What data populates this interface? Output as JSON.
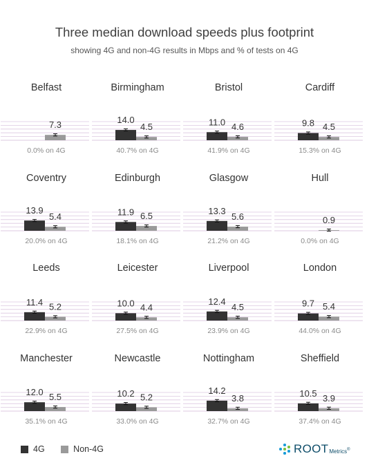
{
  "title": "Three median download speeds plus footprint",
  "subtitle": "showing 4G and non-4G results in Mbps and % of tests on 4G",
  "colors": {
    "4g": "#333333",
    "non4g": "#9a9a9a",
    "grid": "#dcc8e0",
    "error_bar": "#111111",
    "logo": "#0f4e6a"
  },
  "legend": [
    {
      "label": "4G",
      "color": "#333333"
    },
    {
      "label": "Non-4G",
      "color": "#9a9a9a"
    }
  ],
  "logo": {
    "brand": "ROOT",
    "suffix": "Metrics",
    "mark": "®"
  },
  "chart_data": {
    "type": "bar",
    "units": "Mbps",
    "series_names": [
      "4G",
      "Non-4G"
    ],
    "ylim": [
      0,
      15
    ],
    "grid": true,
    "legend_position": "bottom-left",
    "cities": [
      {
        "name": "Belfast",
        "values": [
          null,
          7.3
        ],
        "labels": [
          "",
          "7.3"
        ],
        "footprint": "0.0% on 4G"
      },
      {
        "name": "Birmingham",
        "values": [
          14.0,
          4.5
        ],
        "labels": [
          "14.0",
          "4.5"
        ],
        "footprint": "40.7% on 4G"
      },
      {
        "name": "Bristol",
        "values": [
          11.0,
          4.6
        ],
        "labels": [
          "11.0",
          "4.6"
        ],
        "footprint": "41.9% on 4G"
      },
      {
        "name": "Cardiff",
        "values": [
          9.8,
          4.5
        ],
        "labels": [
          "9.8",
          "4.5"
        ],
        "footprint": "15.3% on 4G"
      },
      {
        "name": "Coventry",
        "values": [
          13.9,
          5.4
        ],
        "labels": [
          "13.9",
          "5.4"
        ],
        "footprint": "20.0% on 4G"
      },
      {
        "name": "Edinburgh",
        "values": [
          11.9,
          6.5
        ],
        "labels": [
          "11.9",
          "6.5"
        ],
        "footprint": "18.1% on 4G"
      },
      {
        "name": "Glasgow",
        "values": [
          13.3,
          5.6
        ],
        "labels": [
          "13.3",
          "5.6"
        ],
        "footprint": "21.2% on 4G"
      },
      {
        "name": "Hull",
        "values": [
          null,
          0.9
        ],
        "labels": [
          "",
          "0.9"
        ],
        "footprint": "0.0% on 4G"
      },
      {
        "name": "Leeds",
        "values": [
          11.4,
          5.2
        ],
        "labels": [
          "11.4",
          "5.2"
        ],
        "footprint": "22.9% on 4G"
      },
      {
        "name": "Leicester",
        "values": [
          10.0,
          4.4
        ],
        "labels": [
          "10.0",
          "4.4"
        ],
        "footprint": "27.5% on 4G"
      },
      {
        "name": "Liverpool",
        "values": [
          12.4,
          4.5
        ],
        "labels": [
          "12.4",
          "4.5"
        ],
        "footprint": "23.9% on 4G"
      },
      {
        "name": "London",
        "values": [
          9.7,
          5.4
        ],
        "labels": [
          "9.7",
          "5.4"
        ],
        "footprint": "44.0% on 4G"
      },
      {
        "name": "Manchester",
        "values": [
          12.0,
          5.5
        ],
        "labels": [
          "12.0",
          "5.5"
        ],
        "footprint": "35.1% on 4G"
      },
      {
        "name": "Newcastle",
        "values": [
          10.2,
          5.2
        ],
        "labels": [
          "10.2",
          "5.2"
        ],
        "footprint": "33.0% on 4G"
      },
      {
        "name": "Nottingham",
        "values": [
          14.2,
          3.8
        ],
        "labels": [
          "14.2",
          "3.8"
        ],
        "footprint": "32.7% on 4G"
      },
      {
        "name": "Sheffield",
        "values": [
          10.5,
          3.9
        ],
        "labels": [
          "10.5",
          "3.9"
        ],
        "footprint": "37.4% on 4G"
      }
    ]
  }
}
